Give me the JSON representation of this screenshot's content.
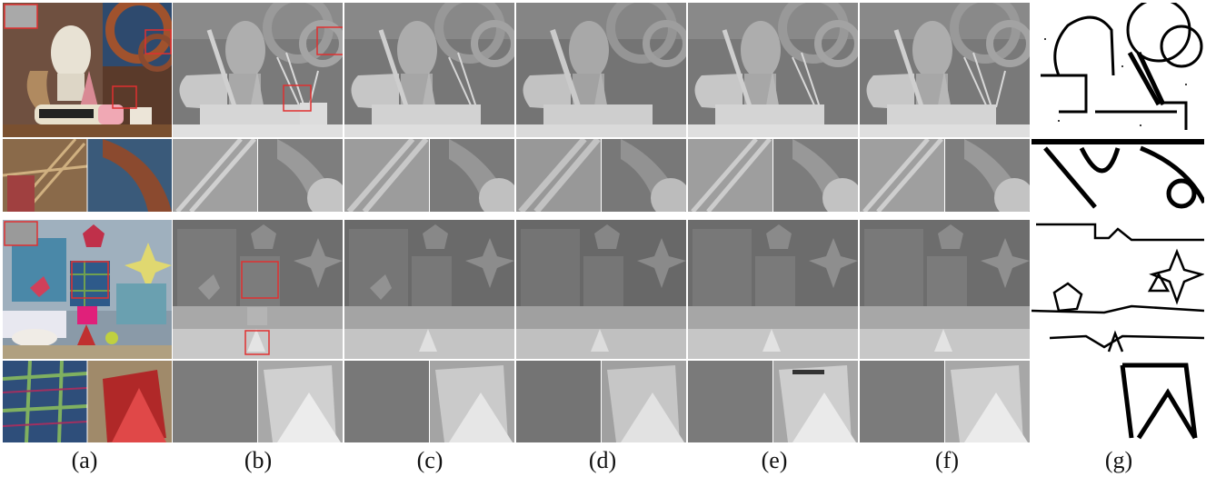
{
  "figure": {
    "captions": [
      "(a)",
      "(b)",
      "(c)",
      "(d)",
      "(e)",
      "(f)",
      "(g)"
    ]
  },
  "colors": {
    "highlight_box": "#e03030",
    "background": "#ffffff",
    "depth_far": "#6a6a6a",
    "depth_near": "#dcdcdc",
    "error_ink": "#000000"
  }
}
